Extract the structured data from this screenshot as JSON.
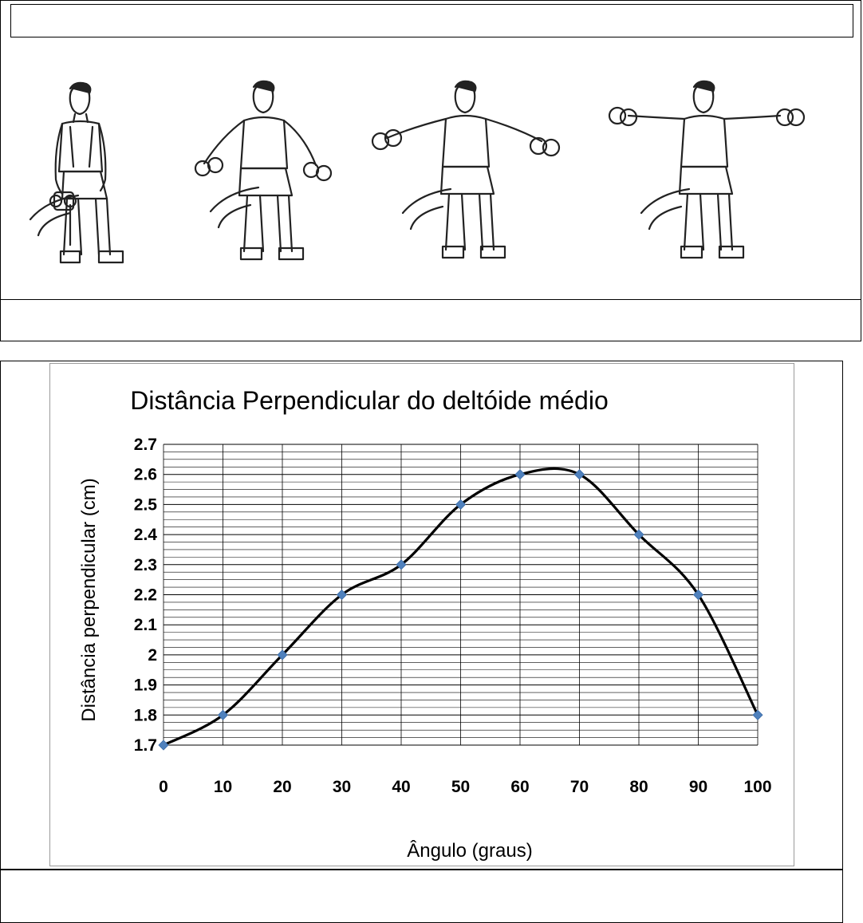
{
  "illustrations": [
    {
      "name": "seated-start-figure"
    },
    {
      "name": "seated-low-raise-figure"
    },
    {
      "name": "seated-mid-raise-figure"
    },
    {
      "name": "seated-full-raise-figure"
    }
  ],
  "colors": {
    "line": "#000000",
    "marker": "#4f81bd",
    "grid": "#000000"
  },
  "chart_data": {
    "type": "line",
    "title": "Distância Perpendicular do deltóide médio",
    "xlabel": "Ângulo (graus)",
    "ylabel": "Distância perpendicular (cm)",
    "x": [
      0,
      10,
      20,
      30,
      40,
      50,
      60,
      70,
      80,
      90,
      100
    ],
    "series": [
      {
        "values": [
          1.7,
          1.8,
          2.0,
          2.2,
          2.3,
          2.5,
          2.6,
          2.6,
          2.4,
          2.2,
          1.8
        ]
      }
    ],
    "xlim": [
      0,
      100
    ],
    "ylim": [
      1.7,
      2.7
    ],
    "xticks": [
      "0",
      "10",
      "20",
      "30",
      "40",
      "50",
      "60",
      "70",
      "80",
      "90",
      "100"
    ],
    "yticks": [
      "1.7",
      "1.8",
      "1.9",
      "2",
      "2.1",
      "2.2",
      "2.3",
      "2.4",
      "2.5",
      "2.6",
      "2.7"
    ],
    "grid": true,
    "smooth": true,
    "marker": "diamond"
  }
}
